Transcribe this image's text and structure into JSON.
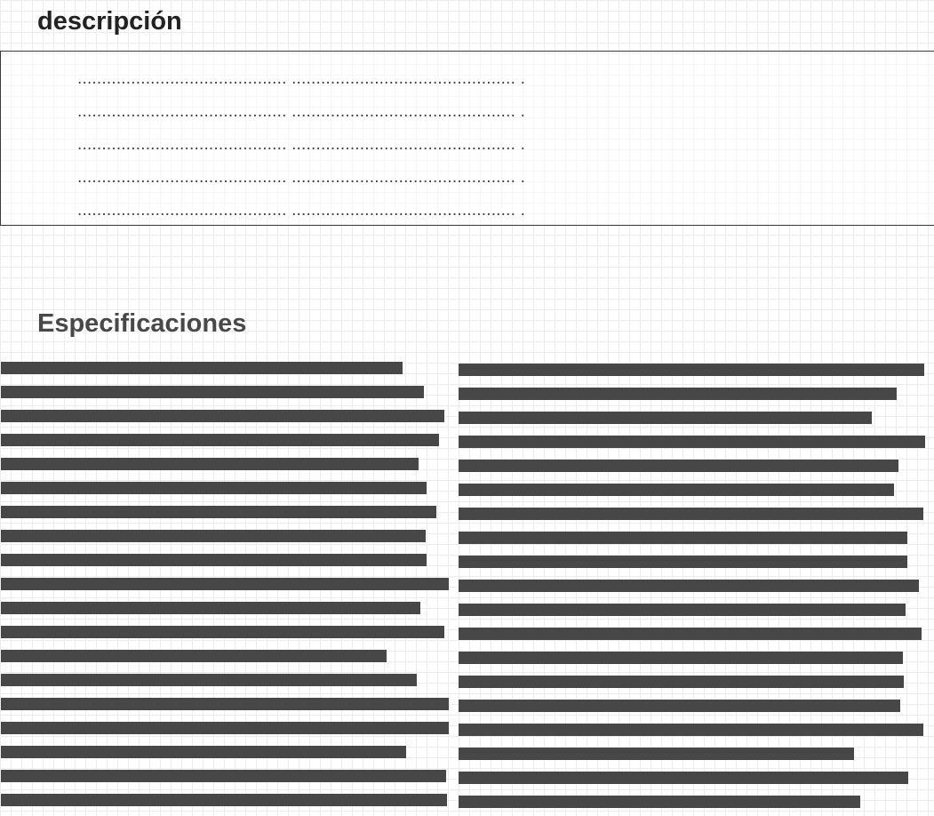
{
  "description": {
    "title": "descripción",
    "lines": [
      "........................................... .............................................. .",
      "........................................... .............................................. .",
      "........................................... .............................................. .",
      "........................................... .............................................. .",
      "........................................... .............................................. ."
    ]
  },
  "specifications": {
    "title": "Especificaciones",
    "left_column_fill": [
      0.897,
      0.944,
      0.99,
      0.978,
      0.932,
      0.95,
      0.972,
      0.948,
      0.95,
      1.0,
      0.937,
      0.99,
      0.861,
      0.929,
      1.0,
      1.0,
      0.905,
      0.994,
      0.996
    ],
    "right_column_fill": [
      0.998,
      0.939,
      0.885,
      1.0,
      0.943,
      0.933,
      0.996,
      0.961,
      0.961,
      0.986,
      0.958,
      0.992,
      0.952,
      0.955,
      0.946,
      0.997,
      0.848,
      0.964,
      0.861
    ]
  },
  "colors": {
    "bar": "#474747",
    "text": "#222222",
    "grid": "#ececec"
  }
}
